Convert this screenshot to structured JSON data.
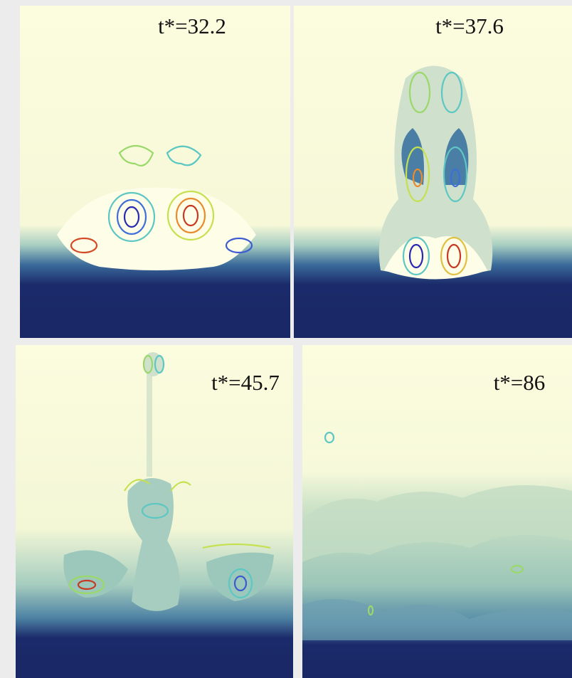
{
  "panels": [
    {
      "label": "t*=32.2"
    },
    {
      "label": "t*=37.6"
    },
    {
      "label": "t*=45.7"
    },
    {
      "label": "t*=86"
    }
  ]
}
